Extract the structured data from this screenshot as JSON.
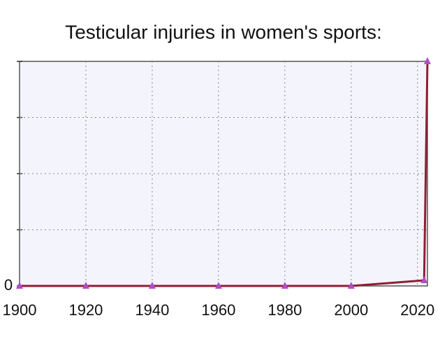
{
  "chart_data": {
    "type": "line",
    "title": "Testicular injuries in women's sports:",
    "x": [
      1900,
      1920,
      1940,
      1960,
      1980,
      2000,
      2022,
      2023
    ],
    "series": [
      {
        "color": "#8e1f33",
        "marker_color": "#b24cc6",
        "values": [
          0,
          0,
          0,
          0,
          0,
          0,
          0.1,
          4
        ]
      }
    ],
    "xlim": [
      1900,
      2023
    ],
    "xticks": [
      1900,
      1920,
      1940,
      1960,
      1980,
      2000,
      2020
    ],
    "ylim": [
      0,
      4
    ],
    "yticks": [
      0,
      {
        "value": 1,
        "label": null
      },
      {
        "value": 2,
        "label": null
      },
      {
        "value": 3,
        "label": null
      },
      {
        "value": 4,
        "label": null
      }
    ],
    "grid": true
  }
}
